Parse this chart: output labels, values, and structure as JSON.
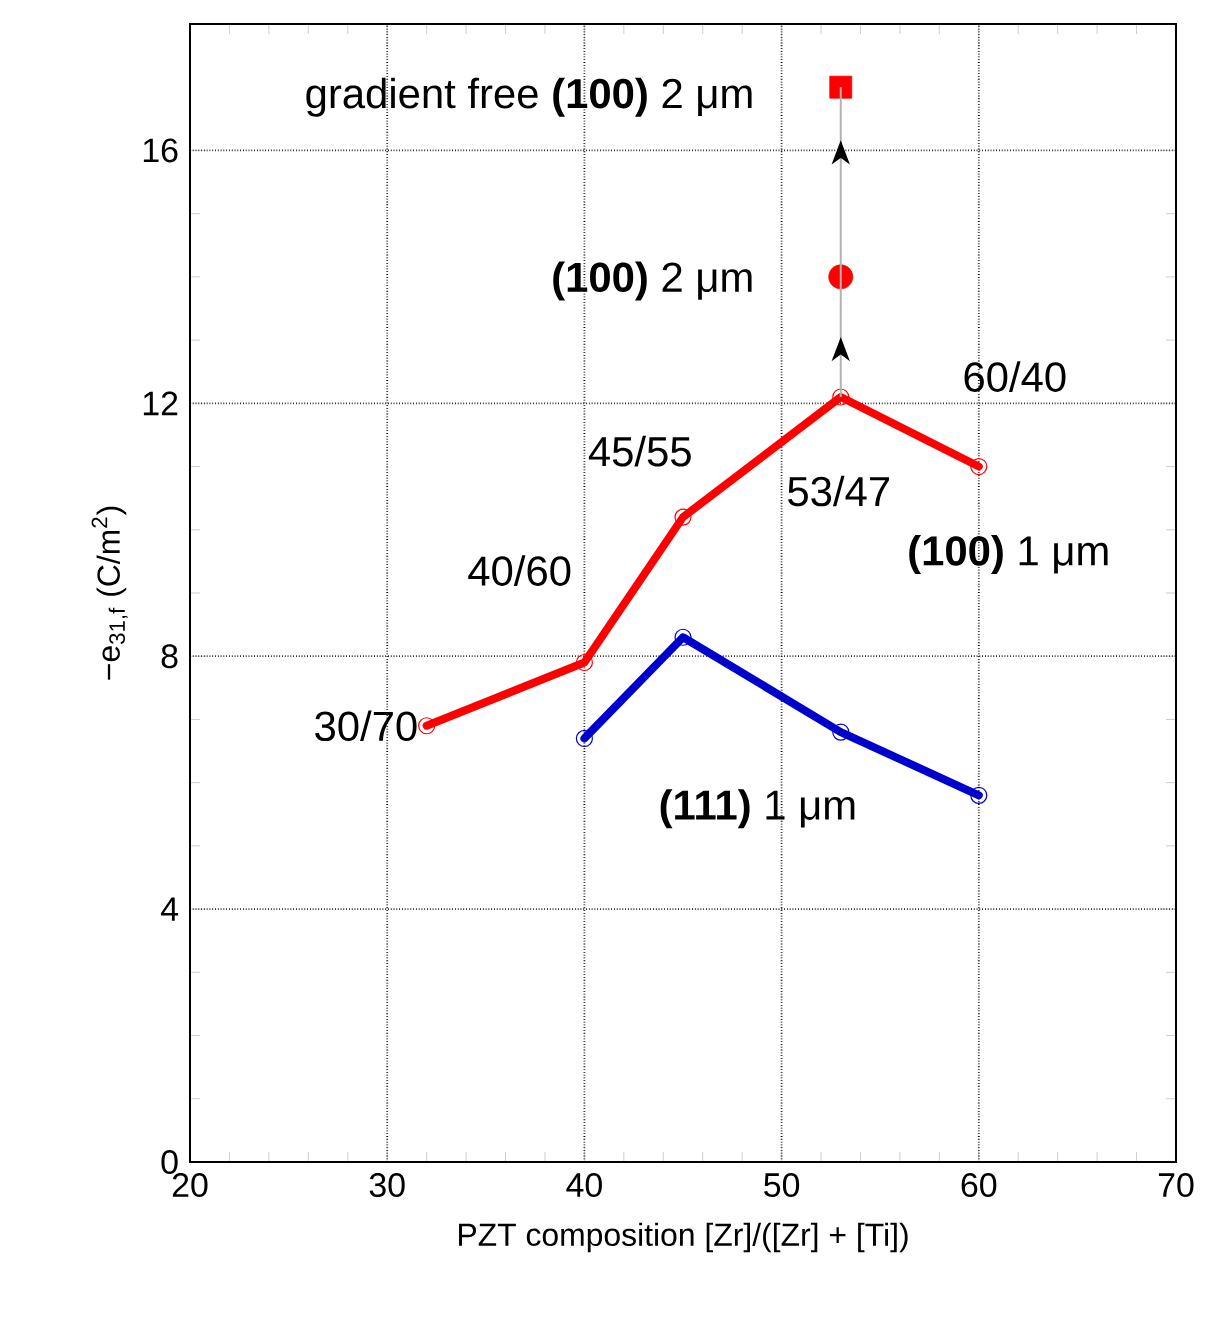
{
  "chart_data": {
    "type": "line",
    "xlabel": "PZT composition [Zr]/([Zr] + [Ti])",
    "ylabel": "−e$_{31,f}$ (C/m$^{2}$)",
    "xlim": [
      20,
      70
    ],
    "ylim": [
      0,
      18
    ],
    "xticks": [
      20,
      30,
      40,
      50,
      60,
      70
    ],
    "yticks": [
      0,
      4,
      8,
      12,
      16
    ],
    "grid": true,
    "series": [
      {
        "name": "**(100)** 1 μm",
        "color": "#ff0000",
        "marker": "circle",
        "x": [
          32,
          40,
          45,
          53,
          60
        ],
        "values": [
          6.9,
          7.9,
          10.2,
          12.1,
          11.0
        ]
      },
      {
        "name": "**(111)** 1 μm",
        "color": "#0000cc",
        "marker": "circle",
        "x": [
          40,
          45,
          53,
          60
        ],
        "values": [
          6.7,
          8.3,
          6.8,
          5.8
        ]
      },
      {
        "name": "**(100)** 2 μm",
        "type": "scatter",
        "color": "#ff0000",
        "marker": "circle",
        "x": [
          53
        ],
        "values": [
          14.0
        ]
      },
      {
        "name": "gradient free **(100)** 2 μm",
        "type": "scatter",
        "color": "#ff0000",
        "marker": "square",
        "x": [
          53
        ],
        "values": [
          17.0
        ]
      }
    ],
    "annotations": [
      {
        "text": "30/70",
        "x": 32,
        "y": 6.9
      },
      {
        "text": "40/60",
        "x": 40,
        "y": 7.9
      },
      {
        "text": "45/55",
        "x": 45,
        "y": 10.2
      },
      {
        "text": "53/47",
        "x": 53,
        "y": 12.1
      },
      {
        "text": "60/40",
        "x": 60,
        "y": 11.0
      }
    ]
  }
}
